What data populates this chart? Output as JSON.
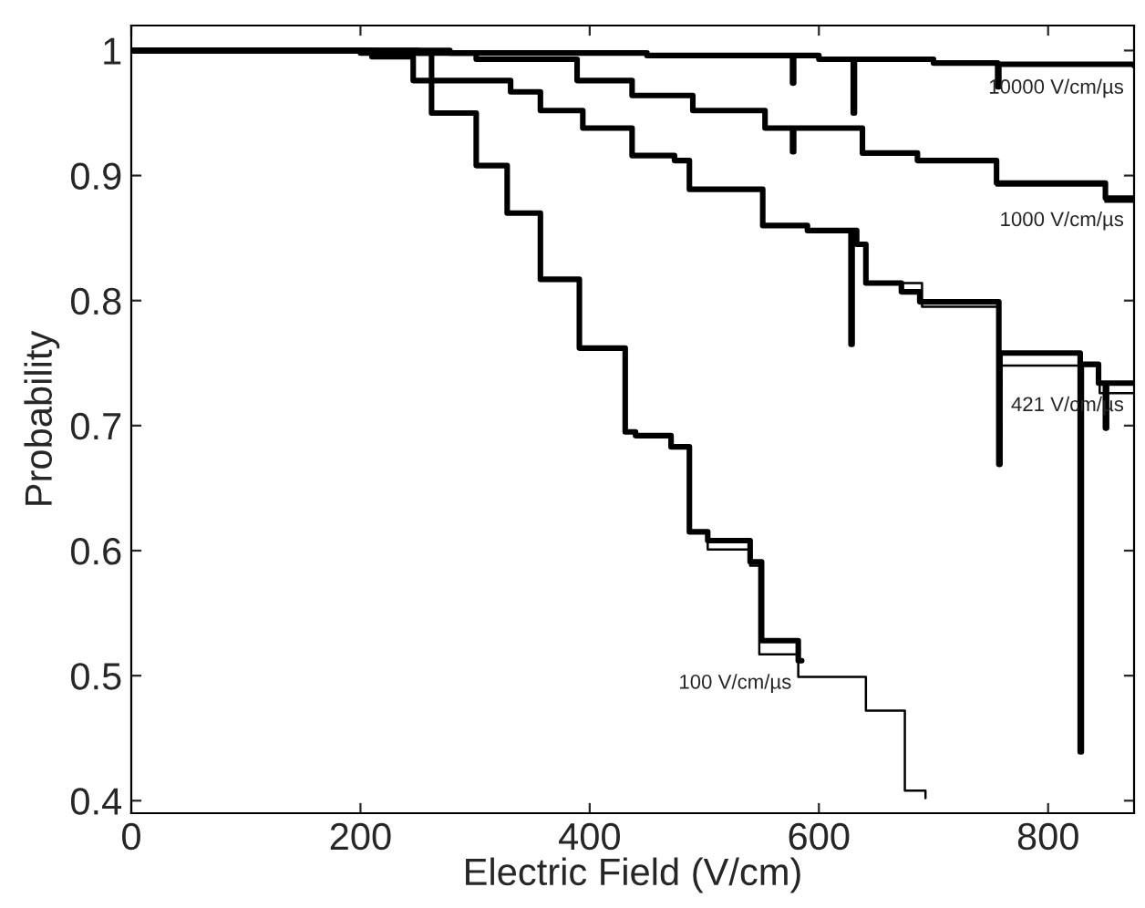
{
  "chart_data": {
    "type": "step",
    "xlabel": "Electric Field (V/cm)",
    "ylabel": "Probability",
    "xlim": [
      0,
      875
    ],
    "ylim": [
      0.39,
      1.02
    ],
    "xticks": [
      0,
      200,
      400,
      600,
      800
    ],
    "yticks": [
      0.4,
      0.5,
      0.6,
      0.7,
      0.8,
      0.9,
      1
    ],
    "grid": false,
    "legend": false,
    "marker": "none",
    "line_style": "solid",
    "series": [
      {
        "name": "10000 V/cm/µs",
        "color": "#000000",
        "x": [
          0,
          250,
          450,
          577,
          578,
          600,
          630,
          631,
          700,
          756,
          757,
          875
        ],
        "values": [
          1,
          0.998,
          0.996,
          0.974,
          0.996,
          0.993,
          0.95,
          0.993,
          0.99,
          0.971,
          0.989,
          0.988
        ]
      },
      {
        "name": "1000 V/cm/µs",
        "color": "#000000",
        "x": [
          0,
          278,
          301,
          389,
          437,
          490,
          553,
          577,
          578,
          638,
          686,
          755,
          850,
          875
        ],
        "values": [
          1,
          0.998,
          0.993,
          0.976,
          0.964,
          0.952,
          0.938,
          0.919,
          0.938,
          0.918,
          0.912,
          0.894,
          0.882,
          0.882
        ]
      },
      {
        "name": "421 V/cm/µs",
        "color": "#000000",
        "x": [
          0,
          210,
          246,
          331,
          357,
          394,
          437,
          474,
          487,
          551,
          590,
          628,
          629,
          633,
          641,
          672,
          688,
          757,
          758,
          828,
          829,
          844,
          850,
          851,
          875
        ],
        "values": [
          1,
          0.995,
          0.976,
          0.967,
          0.952,
          0.938,
          0.916,
          0.912,
          0.889,
          0.86,
          0.856,
          0.765,
          0.856,
          0.845,
          0.814,
          0.807,
          0.799,
          0.669,
          0.758,
          0.439,
          0.749,
          0.734,
          0.698,
          0.734,
          0.734
        ]
      },
      {
        "name": "100 V/cm/µs",
        "color": "#000000",
        "x": [
          0,
          200,
          262,
          301,
          328,
          357,
          391,
          431,
          440,
          471,
          487,
          503,
          540,
          550,
          582,
          585
        ],
        "values": [
          1,
          0.998,
          0.95,
          0.908,
          0.87,
          0.817,
          0.762,
          0.695,
          0.692,
          0.683,
          0.615,
          0.608,
          0.591,
          0.528,
          0.512,
          0.512
        ]
      },
      {
        "color": "#000000",
        "x": [
          487,
          503,
          540,
          548,
          582,
          635,
          641,
          675,
          693
        ],
        "values": [
          0.615,
          0.601,
          0.588,
          0.517,
          0.499,
          0.499,
          0.472,
          0.408,
          0.402
        ]
      },
      {
        "color": "#000000",
        "x": [
          641,
          690,
          757,
          845,
          875
        ],
        "values": [
          0.814,
          0.795,
          0.748,
          0.726,
          0.726
        ]
      },
      {
        "color": "#000000",
        "x": [
          755,
          850,
          875
        ],
        "values": [
          0.892,
          0.879,
          0.879
        ]
      }
    ]
  }
}
